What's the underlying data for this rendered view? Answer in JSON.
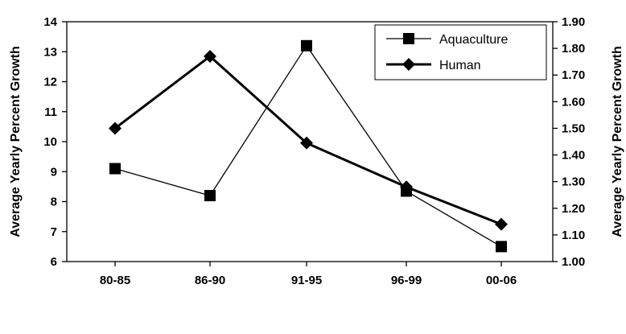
{
  "chart_data": {
    "type": "line",
    "categories": [
      "80-85",
      "86-90",
      "91-95",
      "96-99",
      "00-06"
    ],
    "series": [
      {
        "name": "Aquaculture",
        "axis": "left",
        "marker": "square",
        "line_weight": "thin",
        "color": "#000000",
        "values": [
          9.1,
          8.2,
          13.2,
          8.35,
          6.5
        ]
      },
      {
        "name": "Human",
        "axis": "right",
        "marker": "diamond",
        "line_weight": "thick",
        "color": "#000000",
        "values": [
          1.5,
          1.77,
          1.445,
          1.28,
          1.14
        ]
      }
    ],
    "ylabel": "Average Yearly Percent Growth",
    "y2label": "Average Yearly Percent Growth",
    "ylim": [
      6,
      14
    ],
    "y2lim": [
      1.0,
      1.9
    ],
    "yticks": [
      "6",
      "7",
      "8",
      "9",
      "10",
      "11",
      "12",
      "13",
      "14"
    ],
    "y2ticks": [
      "1.00",
      "1.10",
      "1.20",
      "1.30",
      "1.40",
      "1.50",
      "1.60",
      "1.70",
      "1.80",
      "1.90"
    ],
    "legend_position": "top-right",
    "grid": false
  }
}
